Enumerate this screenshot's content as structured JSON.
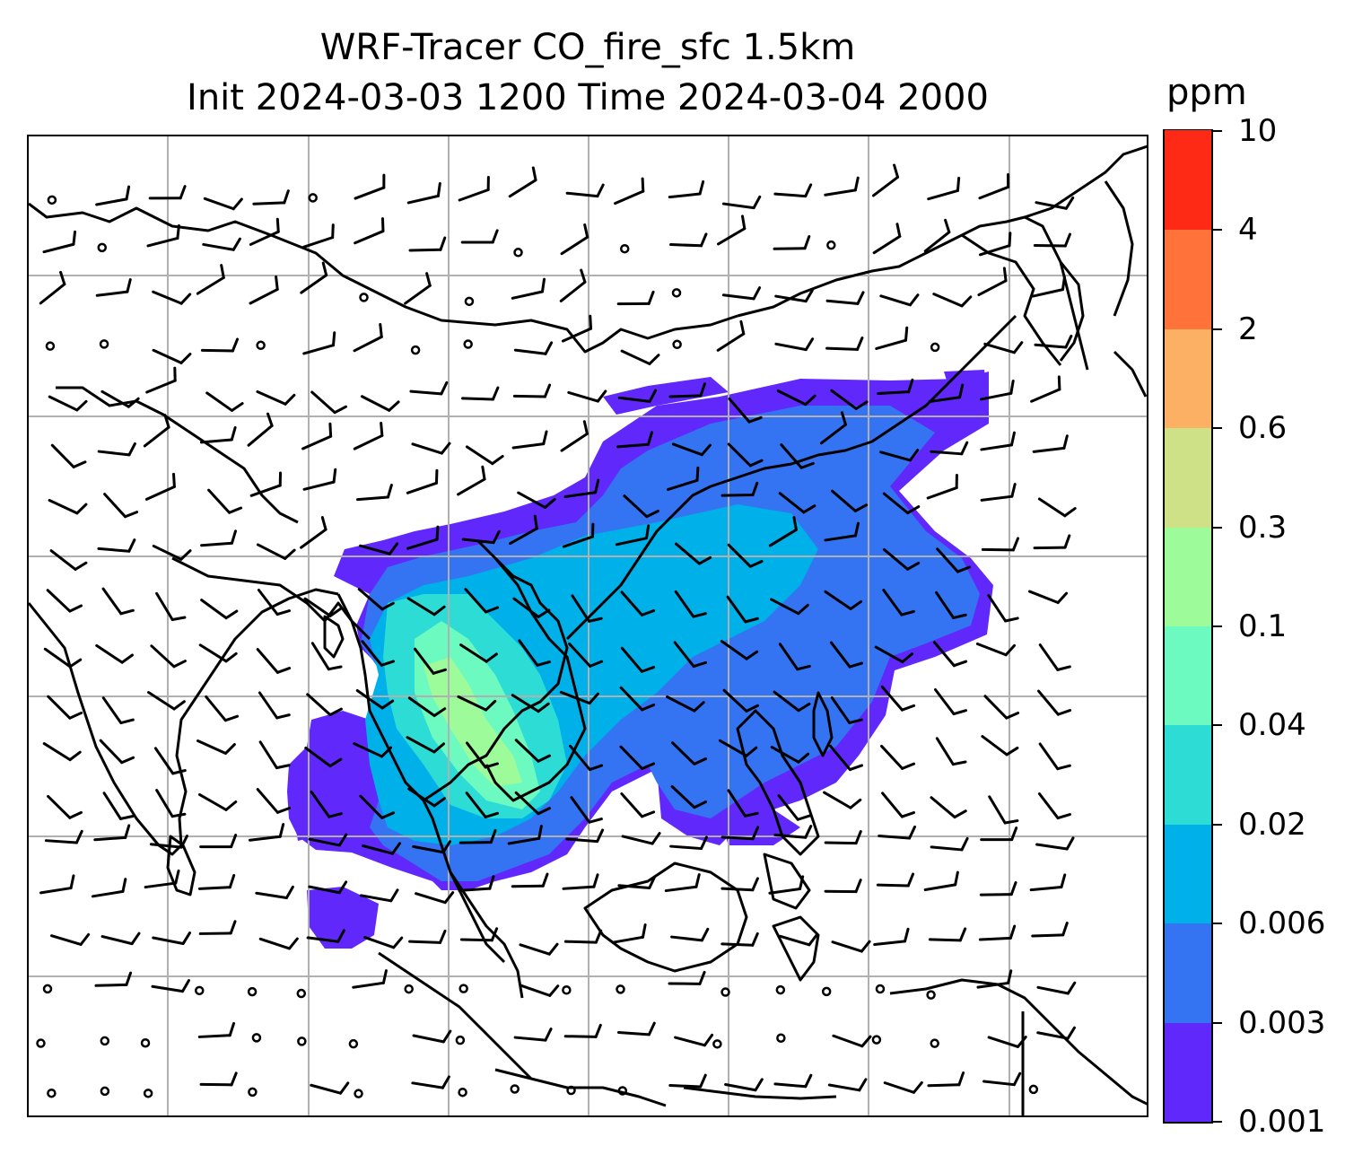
{
  "title": {
    "line1": "WRF-Tracer CO_fire_sfc 1.5km",
    "line2": "Init 2024-03-03 1200 Time 2024-03-04 2000"
  },
  "colorbar": {
    "unit": "ppm",
    "levels": [
      "0.001",
      "0.003",
      "0.006",
      "0.02",
      "0.04",
      "0.1",
      "0.3",
      "0.6",
      "2",
      "4",
      "10"
    ],
    "colors": [
      "#6128fb",
      "#3473f2",
      "#00b0e8",
      "#2edcd6",
      "#6cfac0",
      "#9dfb9a",
      "#cfe186",
      "#fcb064",
      "#ff7239",
      "#ff2a16"
    ]
  },
  "map": {
    "field_colors": {
      "lowest": "#6128fb",
      "low": "#3473f2",
      "mid": "#00b0e8",
      "midhigh": "#2edcd6",
      "high": "#6cfac0",
      "peak": "#9dfb9a"
    },
    "gridlines": "on",
    "grid_color": "#b0b0b0",
    "coastline_color": "#000000",
    "overlay": "wind barbs and calm circles"
  }
}
